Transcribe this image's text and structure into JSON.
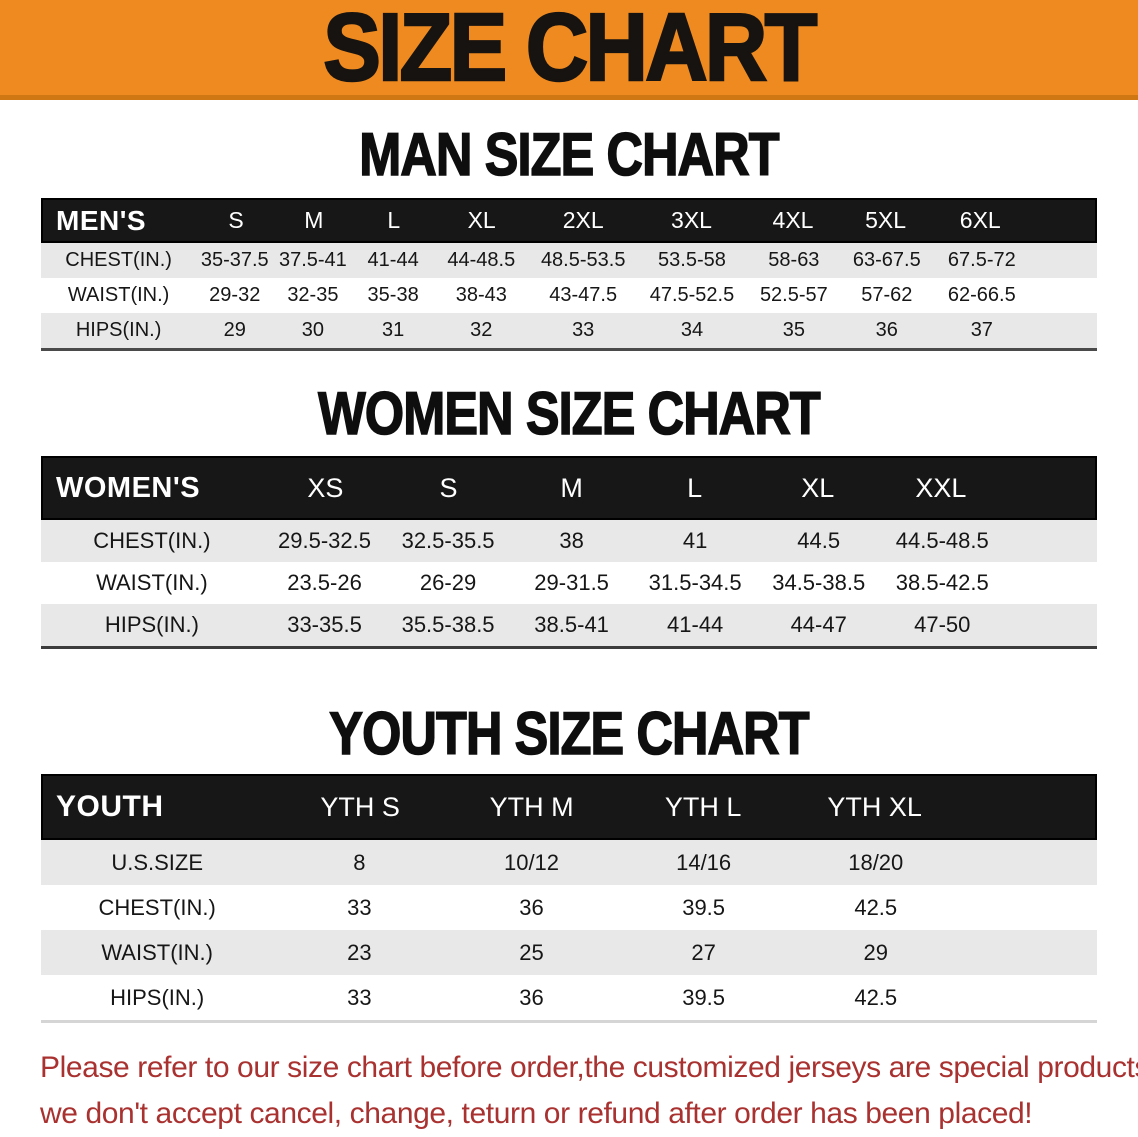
{
  "banner": {
    "title": "SIZE CHART"
  },
  "sections": [
    {
      "heading": "MAN SIZE CHART",
      "table": {
        "label": "MEN'S",
        "columns": [
          "S",
          "M",
          "L",
          "XL",
          "2XL",
          "3XL",
          "4XL",
          "5XL",
          "6XL"
        ],
        "rows": [
          {
            "label": "CHEST(IN.)",
            "values": [
              "35-37.5",
              "37.5-41",
              "41-44",
              "44-48.5",
              "48.5-53.5",
              "53.5-58",
              "58-63",
              "63-67.5",
              "67.5-72"
            ]
          },
          {
            "label": "WAIST(IN.)",
            "values": [
              "29-32",
              "32-35",
              "35-38",
              "38-43",
              "43-47.5",
              "47.5-52.5",
              "52.5-57",
              "57-62",
              "62-66.5"
            ]
          },
          {
            "label": "HIPS(IN.)",
            "values": [
              "29",
              "30",
              "31",
              "32",
              "33",
              "34",
              "35",
              "36",
              "37"
            ]
          }
        ]
      }
    },
    {
      "heading": "WOMEN SIZE CHART",
      "table": {
        "label": "WOMEN'S",
        "columns": [
          "XS",
          "S",
          "M",
          "L",
          "XL",
          "XXL"
        ],
        "rows": [
          {
            "label": "CHEST(IN.)",
            "values": [
              "29.5-32.5",
              "32.5-35.5",
              "38",
              "41",
              "44.5",
              "44.5-48.5"
            ]
          },
          {
            "label": "WAIST(IN.)",
            "values": [
              "23.5-26",
              "26-29",
              "29-31.5",
              "31.5-34.5",
              "34.5-38.5",
              "38.5-42.5"
            ]
          },
          {
            "label": "HIPS(IN.)",
            "values": [
              "33-35.5",
              "35.5-38.5",
              "38.5-41",
              "41-44",
              "44-47",
              "47-50"
            ]
          }
        ]
      }
    },
    {
      "heading": "YOUTH SIZE CHART",
      "table": {
        "label": "YOUTH",
        "columns": [
          "YTH S",
          "YTH M",
          "YTH L",
          "YTH XL"
        ],
        "rows": [
          {
            "label": "U.S.SIZE",
            "values": [
              "8",
              "10/12",
              "14/16",
              "18/20"
            ]
          },
          {
            "label": "CHEST(IN.)",
            "values": [
              "33",
              "36",
              "39.5",
              "42.5"
            ]
          },
          {
            "label": "WAIST(IN.)",
            "values": [
              "23",
              "25",
              "27",
              "29"
            ]
          },
          {
            "label": "HIPS(IN.)",
            "values": [
              "33",
              "36",
              "39.5",
              "42.5"
            ]
          }
        ]
      }
    }
  ],
  "footer": {
    "line1": "Please refer to our size chart before order,the customized jerseys are special products,",
    "line2": "we don't accept cancel, change, teturn or refund after order has been placed!"
  },
  "colors": {
    "banner_bg": "#ee8a20",
    "banner_edge": "#cf7712",
    "header_bar_bg": "#171717",
    "row_alt_bg": "#e8e8e8",
    "footer_text": "#a93230"
  }
}
